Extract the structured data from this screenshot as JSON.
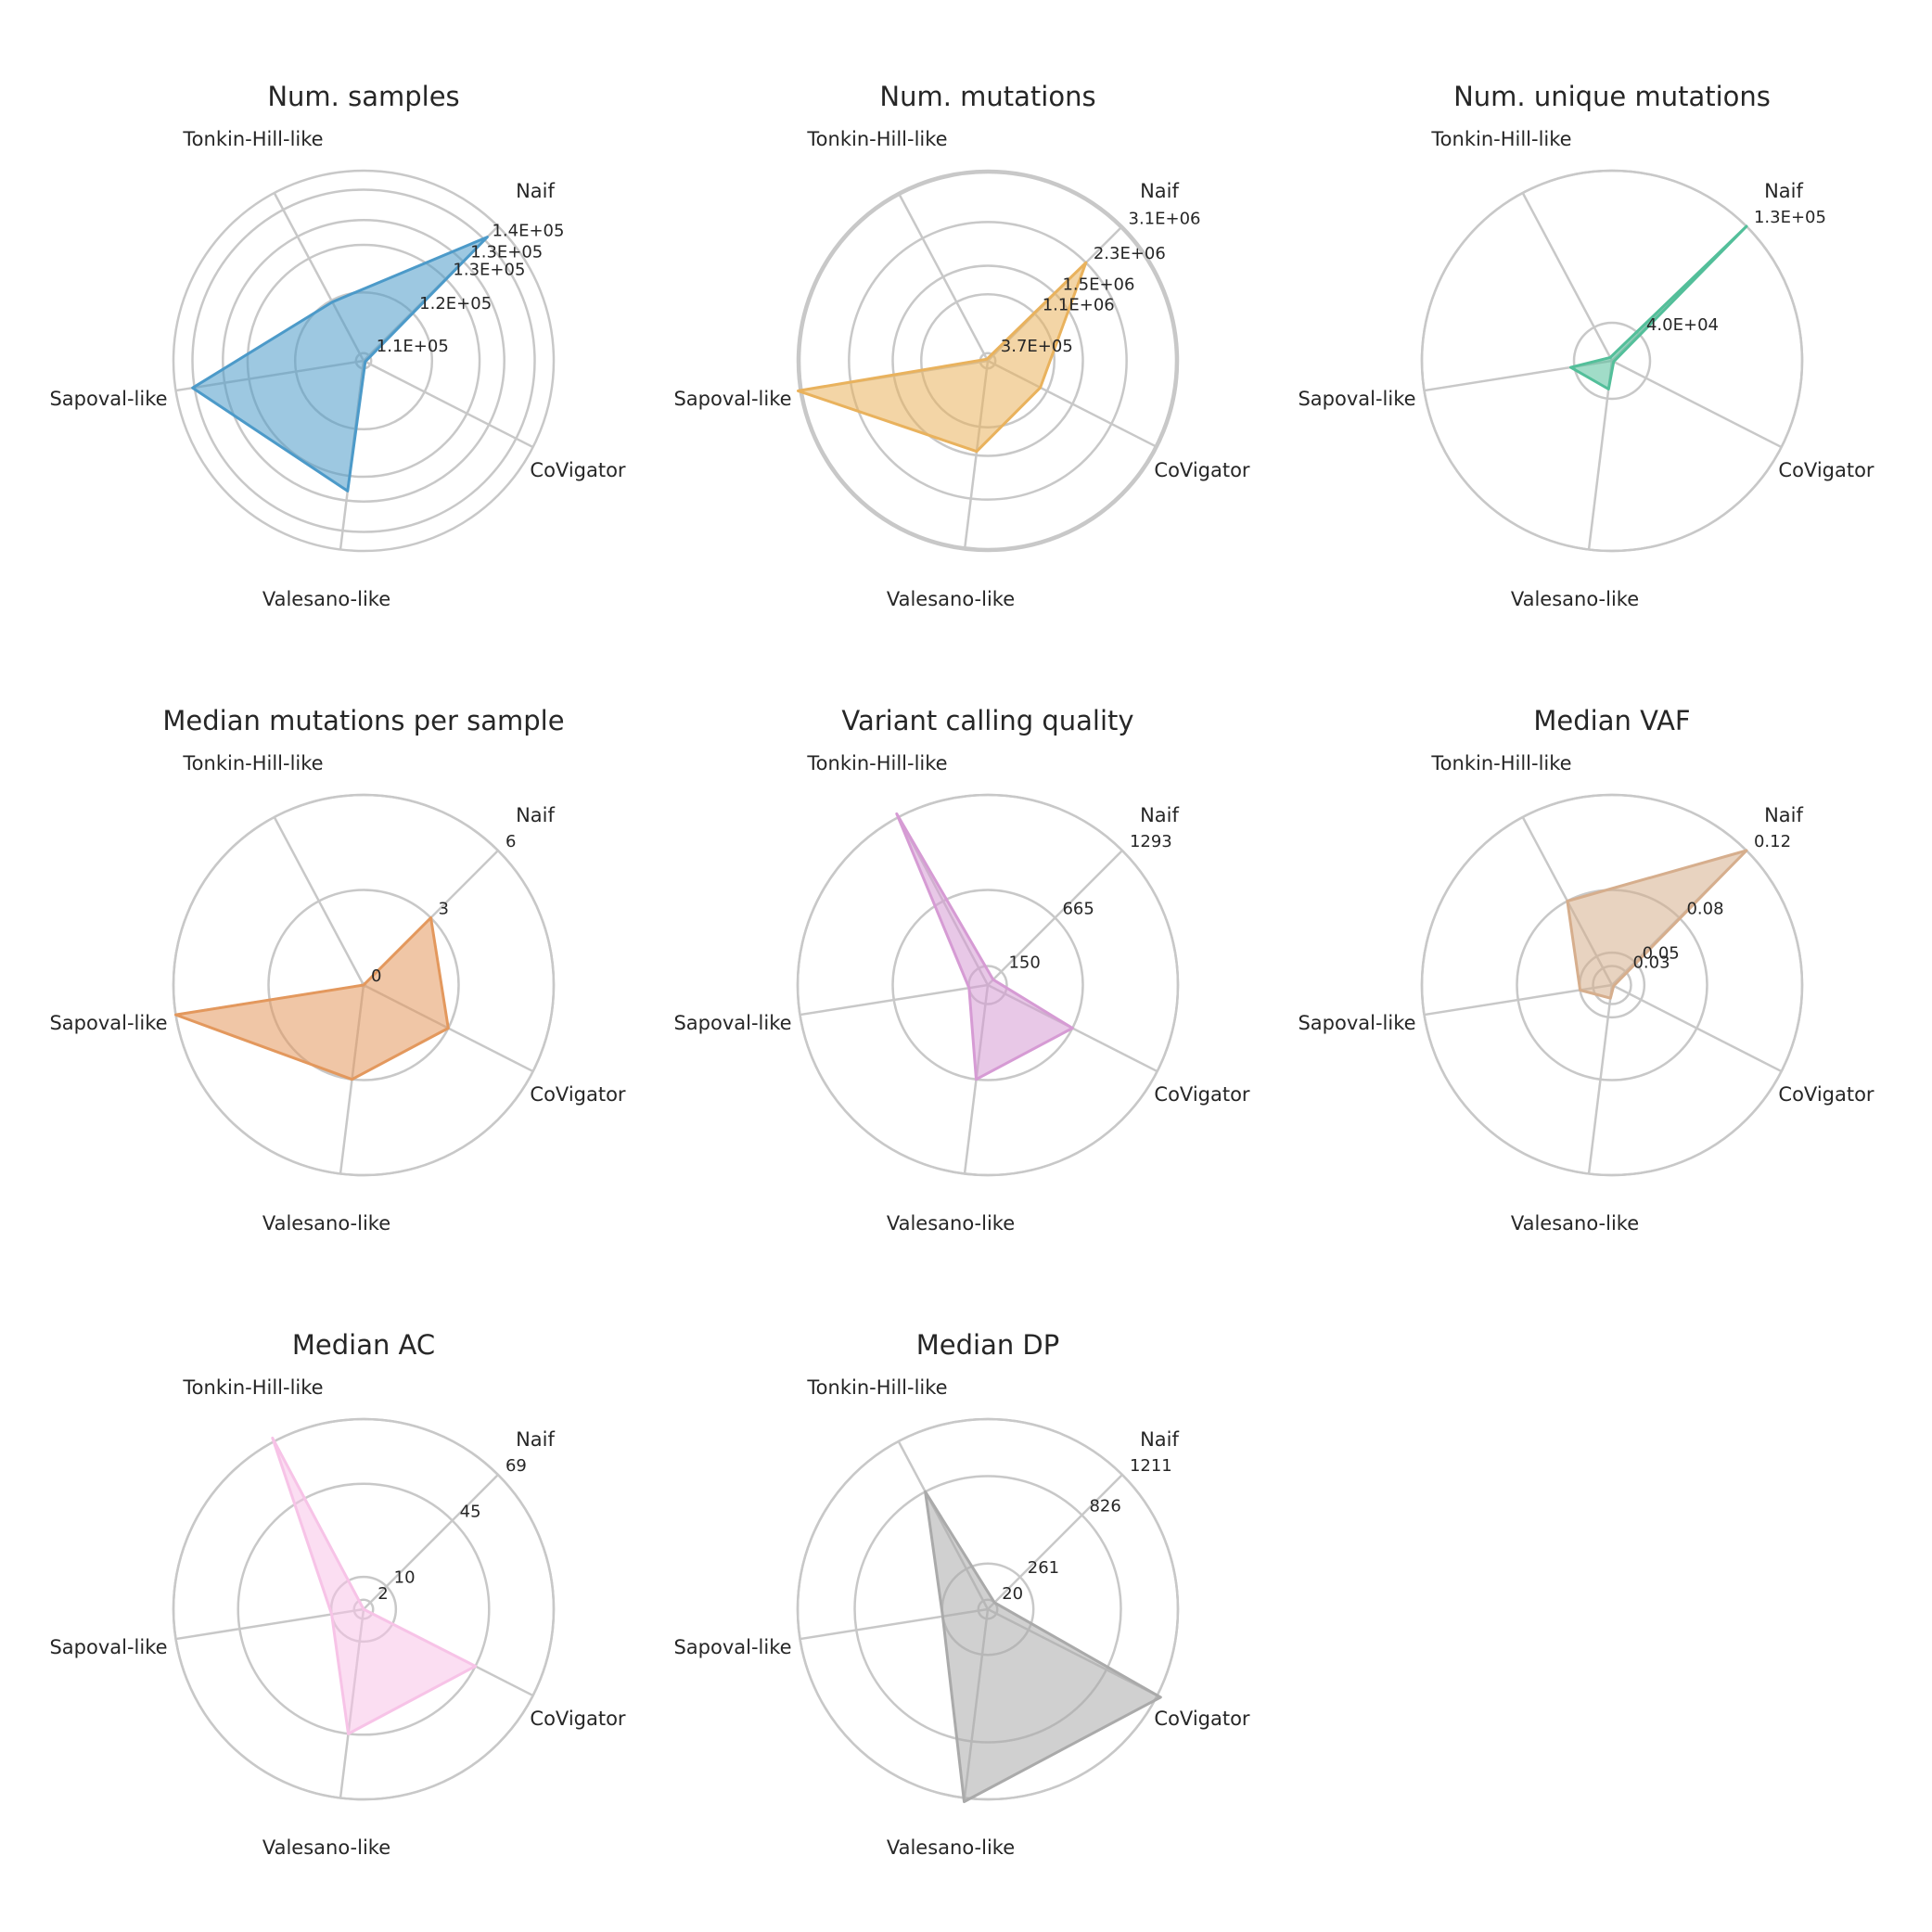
{
  "axes_order": [
    "Naif",
    "CoVigator",
    "Valesano-like",
    "Sapoval-like",
    "Tonkin-Hill-like"
  ],
  "chart_data": [
    {
      "type": "radar",
      "title": "Num. samples",
      "color": "#4c9ac9",
      "tick_labels": [
        "1.1E+05",
        "1.2E+05",
        "1.3E+05",
        "1.3E+05",
        "1.4E+05"
      ],
      "ring_levels": [
        0.04,
        0.36,
        0.61,
        0.74,
        0.9
      ],
      "values": {
        "Naif": 0.92,
        "CoVigator": 0.01,
        "Valesano-like": 0.69,
        "Sapoval-like": 0.91,
        "Tonkin-Hill-like": 0.35
      }
    },
    {
      "type": "radar",
      "title": "Num. mutations",
      "color": "#e9b25d",
      "tick_labels": [
        "3.7E+05",
        "1.1E+06",
        "1.5E+06",
        "2.3E+06",
        "3.1E+06"
      ],
      "ring_levels": [
        0.04,
        0.35,
        0.5,
        0.73,
        0.99
      ],
      "values": {
        "Naif": 0.73,
        "CoVigator": 0.31,
        "Valesano-like": 0.48,
        "Sapoval-like": 1.01,
        "Tonkin-Hill-like": 0.01
      }
    },
    {
      "type": "radar",
      "title": "Num. unique mutations",
      "color": "#53bf9a",
      "tick_labels": [
        "4.0E+04",
        "1.3E+05"
      ],
      "ring_levels": [
        0.2,
        1.0
      ],
      "values": {
        "Naif": 1.0,
        "CoVigator": 0.01,
        "Valesano-like": 0.15,
        "Sapoval-like": 0.22,
        "Tonkin-Hill-like": 0.02
      }
    },
    {
      "type": "radar",
      "title": "Median mutations per sample",
      "color": "#e3985d",
      "tick_labels": [
        "0",
        "3",
        "6"
      ],
      "ring_levels": [
        0.0,
        0.5,
        1.0
      ],
      "values": {
        "Naif": 0.5,
        "CoVigator": 0.5,
        "Valesano-like": 0.5,
        "Sapoval-like": 1.0,
        "Tonkin-Hill-like": 0.0
      }
    },
    {
      "type": "radar",
      "title": "Variant calling quality",
      "color": "#d69bd4",
      "tick_labels": [
        "150",
        "665",
        "1293"
      ],
      "ring_levels": [
        0.1,
        0.5,
        1.0
      ],
      "values": {
        "Naif": 0.04,
        "CoVigator": 0.5,
        "Valesano-like": 0.5,
        "Sapoval-like": 0.1,
        "Tonkin-Hill-like": 1.02
      }
    },
    {
      "type": "radar",
      "title": "Median VAF",
      "color": "#d6ae8d",
      "tick_labels": [
        "0.03",
        "0.05",
        "0.08",
        "0.12"
      ],
      "ring_levels": [
        0.1,
        0.17,
        0.5,
        1.0
      ],
      "values": {
        "Naif": 1.0,
        "CoVigator": 0.01,
        "Valesano-like": 0.07,
        "Sapoval-like": 0.17,
        "Tonkin-Hill-like": 0.5
      }
    },
    {
      "type": "radar",
      "title": "Median AC",
      "color": "#f7c3e7",
      "tick_labels": [
        "2",
        "10",
        "45",
        "69"
      ],
      "ring_levels": [
        0.05,
        0.17,
        0.66,
        1.0
      ],
      "values": {
        "Naif": 0.0,
        "CoVigator": 0.66,
        "Valesano-like": 0.66,
        "Sapoval-like": 0.17,
        "Tonkin-Hill-like": 1.02
      }
    },
    {
      "type": "radar",
      "title": "Median DP",
      "color": "#aaaaaa",
      "tick_labels": [
        "20",
        "261",
        "826",
        "1211"
      ],
      "ring_levels": [
        0.05,
        0.24,
        0.7,
        1.0
      ],
      "values": {
        "Naif": 0.05,
        "CoVigator": 1.02,
        "Valesano-like": 1.02,
        "Sapoval-like": 0.24,
        "Tonkin-Hill-like": 0.7
      }
    }
  ]
}
